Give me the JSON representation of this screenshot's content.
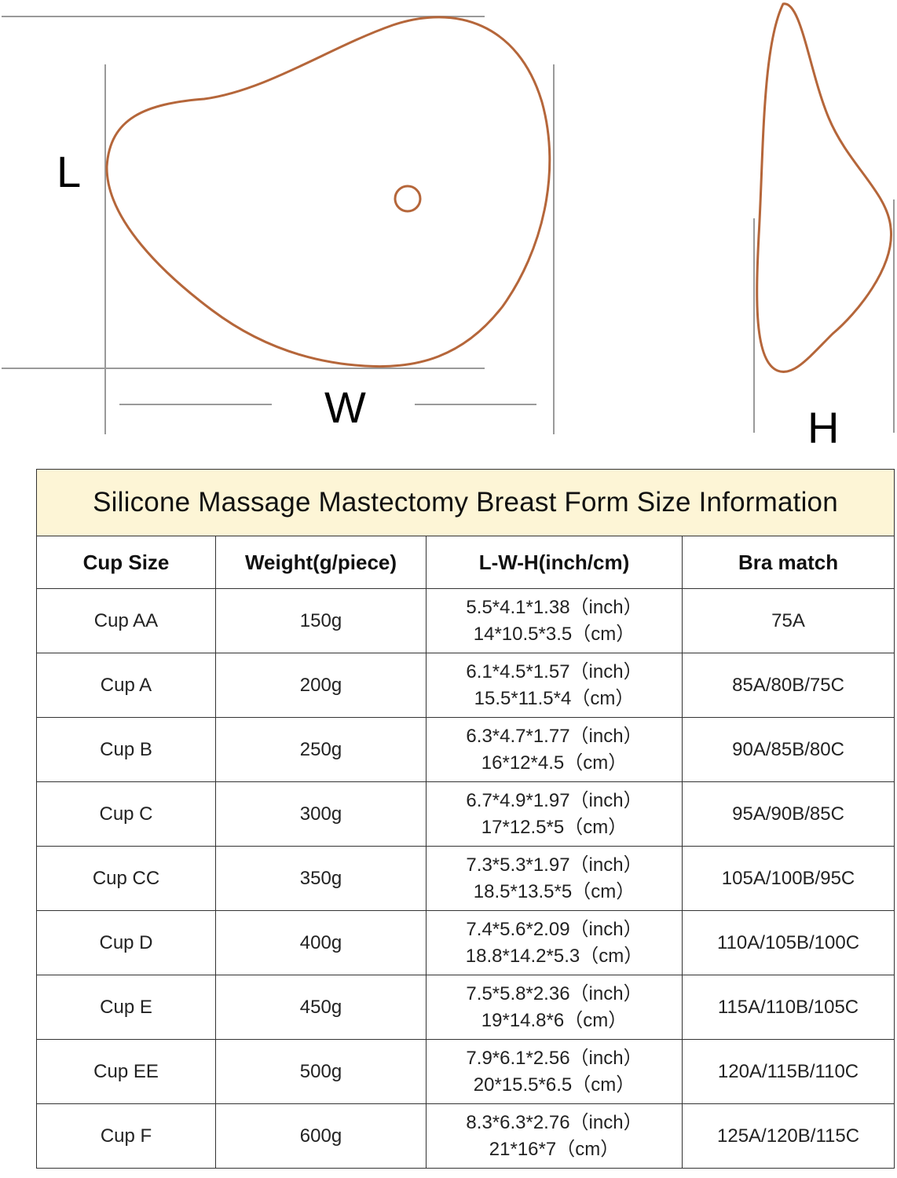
{
  "diagram": {
    "labels": {
      "length": "L",
      "width": "W",
      "height": "H"
    },
    "colors": {
      "outline": "#b5663a",
      "guide": "#9a9a9a"
    }
  },
  "table": {
    "title": "Silicone Massage Mastectomy Breast Form Size Information",
    "colors": {
      "title_bg": "#fdf5d6",
      "border": "#333333"
    },
    "headers": [
      "Cup Size",
      "Weight(g/piece)",
      "L-W-H(inch/cm)",
      "Bra match"
    ],
    "rows": [
      {
        "cup": "Cup AA",
        "weight": "150g",
        "inch": "5.5*4.1*1.38（inch）",
        "cm": "14*10.5*3.5（cm）",
        "bra": "75A"
      },
      {
        "cup": "Cup A",
        "weight": "200g",
        "inch": "6.1*4.5*1.57（inch）",
        "cm": "15.5*11.5*4（cm）",
        "bra": "85A/80B/75C"
      },
      {
        "cup": "Cup B",
        "weight": "250g",
        "inch": "6.3*4.7*1.77（inch）",
        "cm": "16*12*4.5（cm）",
        "bra": "90A/85B/80C"
      },
      {
        "cup": "Cup C",
        "weight": "300g",
        "inch": "6.7*4.9*1.97（inch）",
        "cm": "17*12.5*5（cm）",
        "bra": "95A/90B/85C"
      },
      {
        "cup": "Cup CC",
        "weight": "350g",
        "inch": "7.3*5.3*1.97（inch）",
        "cm": "18.5*13.5*5（cm）",
        "bra": "105A/100B/95C"
      },
      {
        "cup": "Cup D",
        "weight": "400g",
        "inch": "7.4*5.6*2.09（inch）",
        "cm": "18.8*14.2*5.3（cm）",
        "bra": "110A/105B/100C"
      },
      {
        "cup": "Cup E",
        "weight": "450g",
        "inch": "7.5*5.8*2.36（inch）",
        "cm": "19*14.8*6（cm）",
        "bra": "115A/110B/105C"
      },
      {
        "cup": "Cup EE",
        "weight": "500g",
        "inch": "7.9*6.1*2.56（inch）",
        "cm": "20*15.5*6.5（cm）",
        "bra": "120A/115B/110C"
      },
      {
        "cup": "Cup F",
        "weight": "600g",
        "inch": "8.3*6.3*2.76（inch）",
        "cm": "21*16*7（cm）",
        "bra": "125A/120B/115C"
      }
    ]
  }
}
